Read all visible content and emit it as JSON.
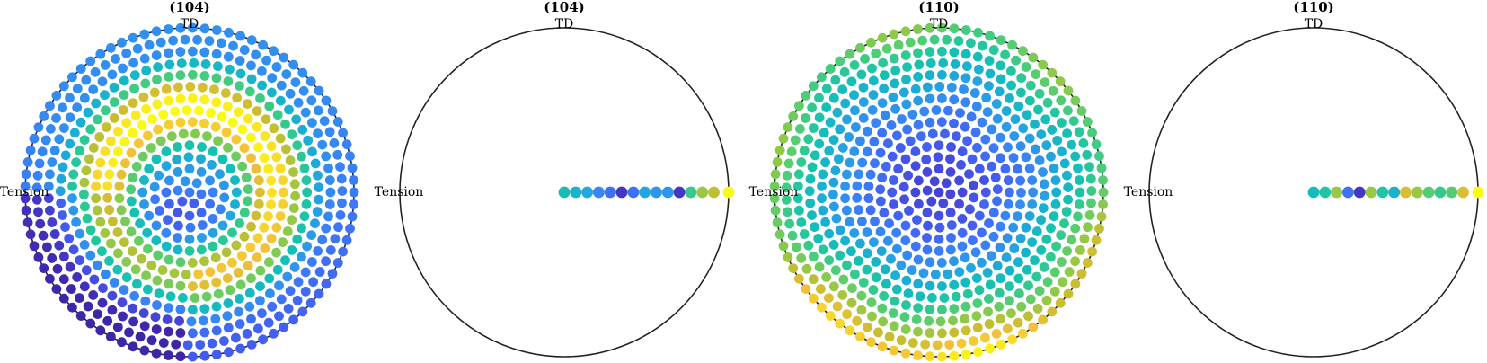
{
  "colormap": [
    "#3e26a8",
    "#4641d3",
    "#4360f0",
    "#3b7ef9",
    "#2d98ea",
    "#1aafd2",
    "#14c0b4",
    "#2ec992",
    "#5ccd6c",
    "#93c946",
    "#c8bd30",
    "#f3c03a",
    "#f9dc2a",
    "#f9fb15"
  ],
  "stroke_color": "#222222",
  "chart_data": [
    {
      "type": "pole-figure-scatter",
      "title": "(104)",
      "top_label": "TD",
      "left_label": "Tension",
      "value_range": [
        0,
        1
      ],
      "points": "full-disk, hexagonal-ring grid; intensity ring peaks at ~55% radius, low in lower-left region"
    },
    {
      "type": "pole-figure-scatter",
      "title": "(104)",
      "top_label": "TD",
      "left_label": "Tension",
      "value_range": [
        0,
        1
      ],
      "radial_r": [
        0.0,
        0.07,
        0.14,
        0.21,
        0.28,
        0.35,
        0.42,
        0.49,
        0.56,
        0.63,
        0.7,
        0.77,
        0.84,
        0.91,
        1.0
      ],
      "radial_values": [
        0.45,
        0.4,
        0.35,
        0.25,
        0.2,
        0.05,
        0.2,
        0.35,
        0.3,
        0.3,
        0.05,
        0.55,
        0.7,
        0.75,
        1.0
      ]
    },
    {
      "type": "pole-figure-scatter",
      "title": "(110)",
      "top_label": "TD",
      "left_label": "Tension",
      "value_range": [
        0,
        1
      ],
      "points": "full-disk, hexagonal-ring grid; low intensity at center rising toward rim, highest at bottom rim"
    },
    {
      "type": "pole-figure-scatter",
      "title": "(110)",
      "top_label": "TD",
      "left_label": "Tension",
      "value_range": [
        0,
        1
      ],
      "radial_r": [
        0.0,
        0.07,
        0.14,
        0.21,
        0.28,
        0.35,
        0.42,
        0.49,
        0.56,
        0.63,
        0.7,
        0.77,
        0.84,
        0.91,
        1.0
      ],
      "radial_values": [
        0.45,
        0.5,
        0.7,
        0.2,
        0.05,
        0.7,
        0.5,
        0.4,
        0.8,
        0.7,
        0.6,
        0.55,
        0.6,
        0.8,
        1.0
      ]
    }
  ]
}
